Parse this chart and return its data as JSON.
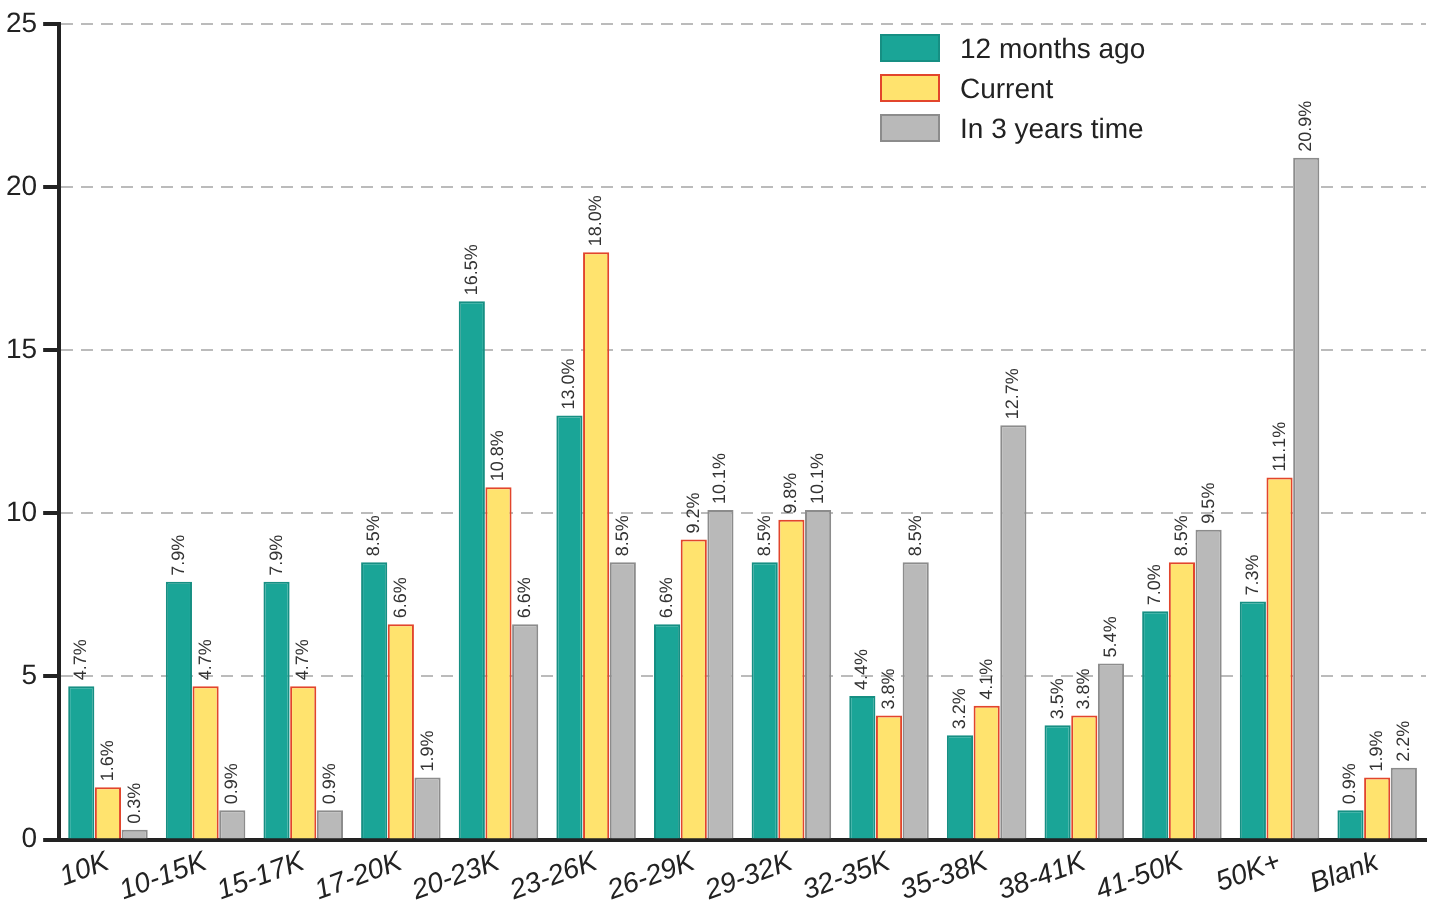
{
  "chart_data": {
    "type": "bar",
    "categories": [
      "10K",
      "10-15K",
      "15-17K",
      "17-20K",
      "20-23K",
      "23-26K",
      "26-29K",
      "29-32K",
      "32-35K",
      "35-38K",
      "38-41K",
      "41-50K",
      "50K+",
      "Blank"
    ],
    "series": [
      {
        "name": "12 months ago",
        "color": "#1aa597",
        "values": [
          4.7,
          7.9,
          7.9,
          8.5,
          16.5,
          13.0,
          6.6,
          8.5,
          4.4,
          3.2,
          3.5,
          7.0,
          7.3,
          0.9
        ],
        "value_labels": [
          "4.7%",
          "7.9%",
          "7.9%",
          "8.5%",
          "16.5%",
          "13.0%",
          "6.6%",
          "8.5%",
          "4.4%",
          "3.2%",
          "3.5%",
          "7.0%",
          "7.3%",
          "0.9%"
        ]
      },
      {
        "name": "Current",
        "color": "#ffe36e",
        "values": [
          1.6,
          4.7,
          4.7,
          6.6,
          10.8,
          18.0,
          9.2,
          9.8,
          3.8,
          4.1,
          3.8,
          8.5,
          11.1,
          1.9
        ],
        "value_labels": [
          "1.6%",
          "4.7%",
          "4.7%",
          "6.6%",
          "10.8%",
          "18.0%",
          "9.2%",
          "9.8%",
          "3.8%",
          "4.1%",
          "3.8%",
          "8.5%",
          "11.1%",
          "1.9%"
        ]
      },
      {
        "name": "In 3 years time",
        "color": "#b9b9b9",
        "values": [
          0.3,
          0.9,
          0.9,
          1.9,
          6.6,
          8.5,
          10.1,
          10.1,
          8.5,
          12.7,
          5.4,
          9.5,
          20.9,
          2.2
        ],
        "value_labels": [
          "0.3%",
          "0.9%",
          "0.9%",
          "1.9%",
          "6.6%",
          "8.5%",
          "10.1%",
          "10.1%",
          "8.5%",
          "12.7%",
          "5.4%",
          "9.5%",
          "20.9%",
          "2.2%"
        ]
      }
    ],
    "ylim": [
      0,
      25
    ],
    "yticks": [
      0,
      5,
      10,
      15,
      20,
      25
    ],
    "grid": "y",
    "legend": "top right"
  }
}
